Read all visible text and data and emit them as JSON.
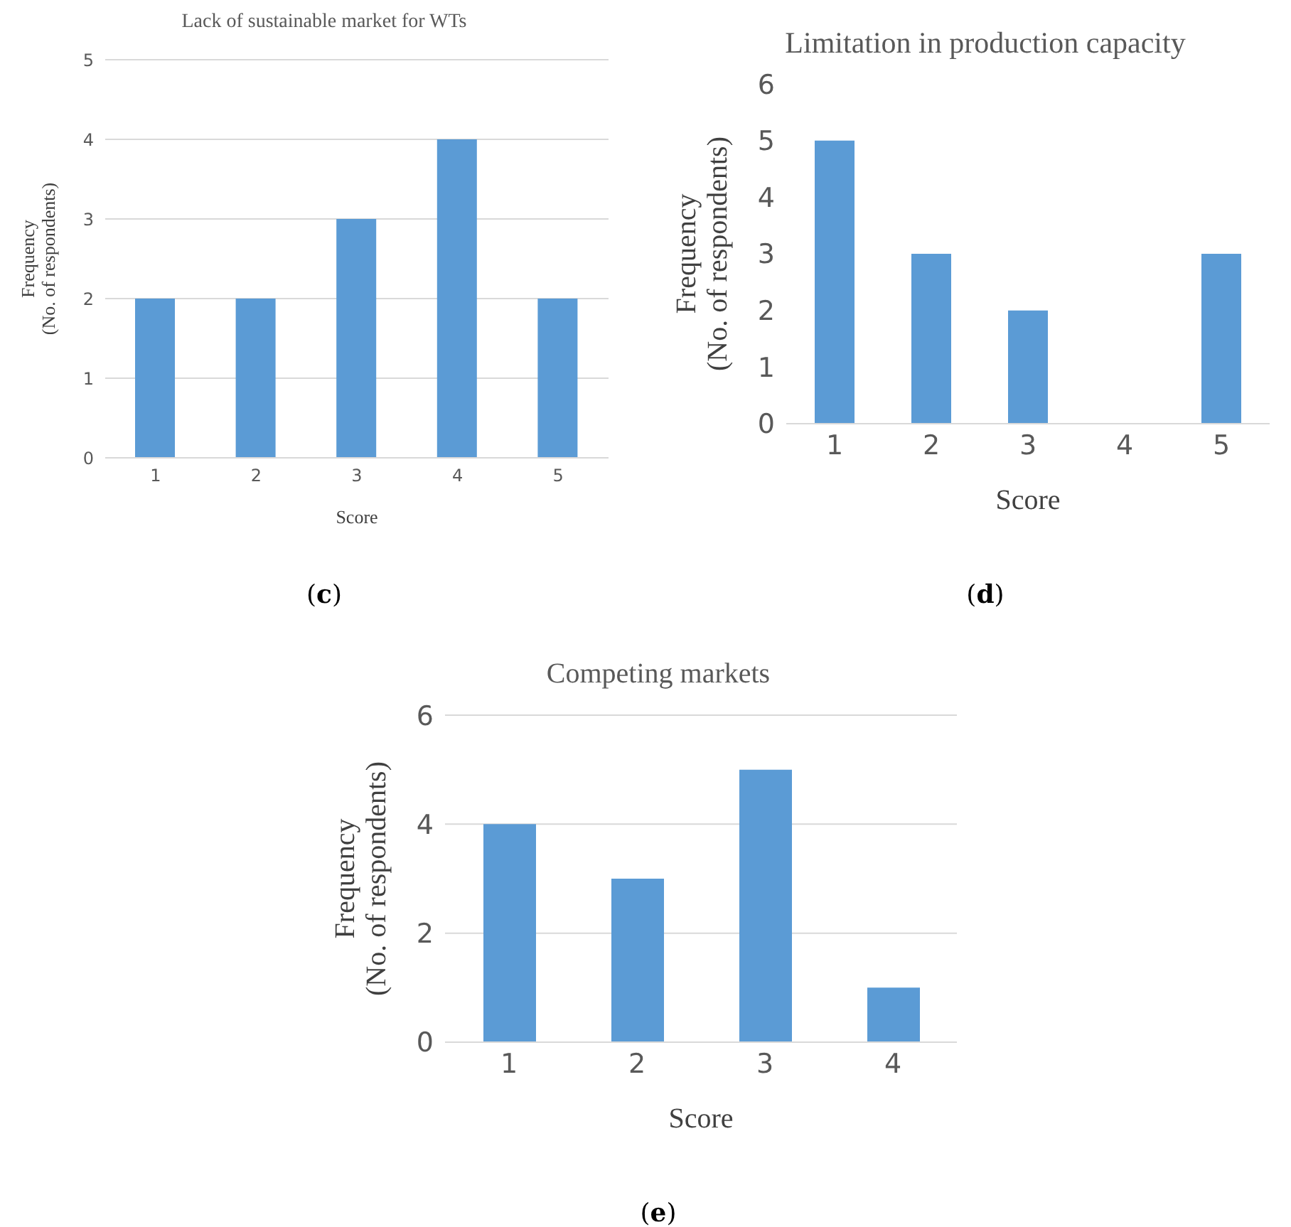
{
  "chart_data": [
    {
      "type": "bar",
      "title": "Lack of sustainable market for WTs",
      "xlabel": "Score",
      "ylabel": "Frequency\n(No. of respondents)",
      "categories": [
        "1",
        "2",
        "3",
        "4",
        "5"
      ],
      "values": [
        2,
        2,
        3,
        4,
        2
      ],
      "color": "#5b9bd5",
      "ylim": [
        0,
        5
      ],
      "yticks": [
        0,
        1,
        2,
        3,
        4,
        5
      ],
      "grid": "y",
      "annotations": [
        "(c)"
      ]
    },
    {
      "type": "bar",
      "title": "Limitation in production capacity",
      "xlabel": "Score",
      "ylabel": "Frequency\n(No. of  respondents)",
      "categories": [
        "1",
        "2",
        "3",
        "4",
        "5"
      ],
      "values": [
        5,
        3,
        2,
        0,
        3
      ],
      "color": "#5b9bd5",
      "ylim": [
        0,
        6
      ],
      "yticks": [
        0,
        1,
        2,
        3,
        4,
        5,
        6
      ],
      "grid": false,
      "annotations": [
        "(d)"
      ]
    },
    {
      "type": "bar",
      "title": "Competing markets",
      "xlabel": "Score",
      "ylabel": "Frequency\n(No. of  respondents)",
      "categories": [
        "1",
        "2",
        "3",
        "4"
      ],
      "values": [
        4,
        3,
        5,
        1
      ],
      "color": "#5b9bd5",
      "ylim": [
        0,
        6
      ],
      "yticks": [
        0,
        2,
        4,
        6
      ],
      "grid": "y",
      "annotations": [
        "(e)"
      ]
    }
  ]
}
